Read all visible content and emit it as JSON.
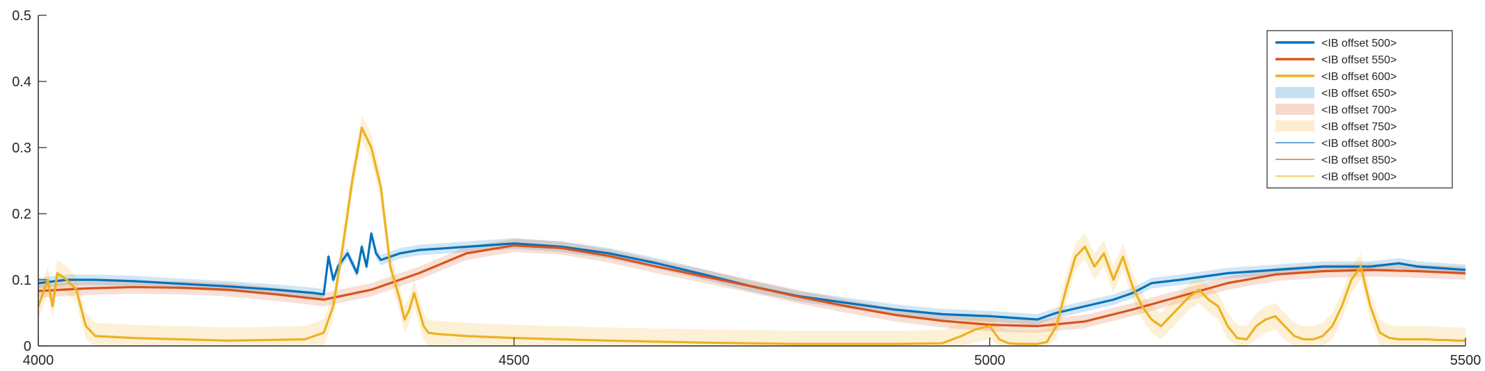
{
  "chart_data": {
    "type": "line",
    "title": "",
    "xlabel": "",
    "ylabel": "",
    "xlim": [
      4000,
      5500
    ],
    "ylim": [
      0,
      0.5
    ],
    "xticks": [
      "4000",
      "4500",
      "5000",
      "5500"
    ],
    "yticks": [
      "0",
      "0.1",
      "0.2",
      "0.3",
      "0.4",
      "0.5"
    ],
    "grid": false,
    "legend_position": "top-right",
    "legend": [
      {
        "label": "<IB offset 500>",
        "style": "thick-line",
        "color": "#0072bd"
      },
      {
        "label": "<IB offset 550>",
        "style": "thick-line",
        "color": "#d95319"
      },
      {
        "label": "<IB offset 600>",
        "style": "thick-line",
        "color": "#edb120"
      },
      {
        "label": "<IB offset 650>",
        "style": "band",
        "color": "#0072bd"
      },
      {
        "label": "<IB offset 700>",
        "style": "band",
        "color": "#d95319"
      },
      {
        "label": "<IB offset 750>",
        "style": "band",
        "color": "#edb120"
      },
      {
        "label": "<IB offset 800>",
        "style": "thin-line",
        "color": "#0072bd"
      },
      {
        "label": "<IB offset 850>",
        "style": "thin-line",
        "color": "#d95319"
      },
      {
        "label": "<IB offset 900>",
        "style": "thin-line",
        "color": "#edb120"
      }
    ],
    "series": [
      {
        "color": "#0072bd",
        "band_halfwidth": 0.008,
        "x": [
          4000,
          4030,
          4060,
          4100,
          4150,
          4200,
          4250,
          4290,
          4300,
          4305,
          4310,
          4315,
          4320,
          4325,
          4335,
          4340,
          4345,
          4350,
          4355,
          4360,
          4370,
          4380,
          4400,
          4450,
          4500,
          4550,
          4600,
          4650,
          4700,
          4750,
          4800,
          4850,
          4900,
          4950,
          5000,
          5050,
          5070,
          5100,
          5130,
          5150,
          5170,
          5200,
          5250,
          5300,
          5350,
          5400,
          5430,
          5450,
          5500
        ],
        "y": [
          0.095,
          0.1,
          0.1,
          0.098,
          0.094,
          0.09,
          0.085,
          0.08,
          0.078,
          0.135,
          0.1,
          0.12,
          0.13,
          0.14,
          0.11,
          0.15,
          0.12,
          0.17,
          0.14,
          0.13,
          0.135,
          0.14,
          0.145,
          0.15,
          0.155,
          0.15,
          0.14,
          0.125,
          0.108,
          0.09,
          0.075,
          0.065,
          0.055,
          0.048,
          0.045,
          0.04,
          0.05,
          0.06,
          0.07,
          0.08,
          0.095,
          0.1,
          0.11,
          0.115,
          0.12,
          0.12,
          0.125,
          0.12,
          0.115
        ]
      },
      {
        "color": "#d95319",
        "band_halfwidth": 0.01,
        "x": [
          4000,
          4050,
          4100,
          4150,
          4200,
          4250,
          4300,
          4350,
          4400,
          4450,
          4500,
          4550,
          4600,
          4650,
          4700,
          4750,
          4800,
          4850,
          4900,
          4950,
          5000,
          5050,
          5100,
          5150,
          5200,
          5250,
          5300,
          5350,
          5400,
          5450,
          5500
        ],
        "y": [
          0.083,
          0.087,
          0.089,
          0.088,
          0.085,
          0.078,
          0.07,
          0.085,
          0.11,
          0.14,
          0.152,
          0.148,
          0.136,
          0.12,
          0.105,
          0.09,
          0.074,
          0.06,
          0.047,
          0.038,
          0.032,
          0.03,
          0.037,
          0.055,
          0.075,
          0.095,
          0.108,
          0.113,
          0.115,
          0.113,
          0.11
        ]
      },
      {
        "color": "#edb120",
        "band_halfwidth": 0.02,
        "x": [
          4000,
          4010,
          4015,
          4020,
          4030,
          4040,
          4050,
          4060,
          4100,
          4200,
          4280,
          4300,
          4310,
          4320,
          4330,
          4340,
          4350,
          4360,
          4370,
          4380,
          4385,
          4390,
          4395,
          4400,
          4405,
          4410,
          4420,
          4450,
          4500,
          4600,
          4700,
          4800,
          4900,
          4950,
          4970,
          4985,
          5000,
          5010,
          5020,
          5030,
          5050,
          5060,
          5070,
          5080,
          5090,
          5100,
          5110,
          5120,
          5130,
          5140,
          5150,
          5160,
          5170,
          5180,
          5190,
          5200,
          5210,
          5220,
          5230,
          5240,
          5250,
          5260,
          5270,
          5280,
          5290,
          5300,
          5310,
          5320,
          5330,
          5340,
          5350,
          5360,
          5370,
          5380,
          5390,
          5400,
          5410,
          5420,
          5430,
          5440,
          5450,
          5460,
          5470,
          5480,
          5490,
          5500
        ],
        "y": [
          0.06,
          0.1,
          0.06,
          0.11,
          0.1,
          0.085,
          0.03,
          0.015,
          0.012,
          0.008,
          0.01,
          0.02,
          0.06,
          0.15,
          0.25,
          0.33,
          0.3,
          0.24,
          0.12,
          0.07,
          0.04,
          0.055,
          0.08,
          0.055,
          0.03,
          0.02,
          0.018,
          0.015,
          0.012,
          0.008,
          0.005,
          0.003,
          0.003,
          0.004,
          0.015,
          0.025,
          0.03,
          0.01,
          0.004,
          0.003,
          0.003,
          0.006,
          0.03,
          0.085,
          0.135,
          0.15,
          0.12,
          0.14,
          0.1,
          0.135,
          0.09,
          0.06,
          0.04,
          0.03,
          0.045,
          0.06,
          0.075,
          0.085,
          0.07,
          0.06,
          0.03,
          0.012,
          0.01,
          0.03,
          0.04,
          0.045,
          0.03,
          0.015,
          0.01,
          0.01,
          0.015,
          0.03,
          0.06,
          0.1,
          0.12,
          0.06,
          0.02,
          0.012,
          0.01,
          0.01,
          0.01,
          0.01,
          0.009,
          0.009,
          0.008,
          0.008
        ]
      }
    ]
  }
}
